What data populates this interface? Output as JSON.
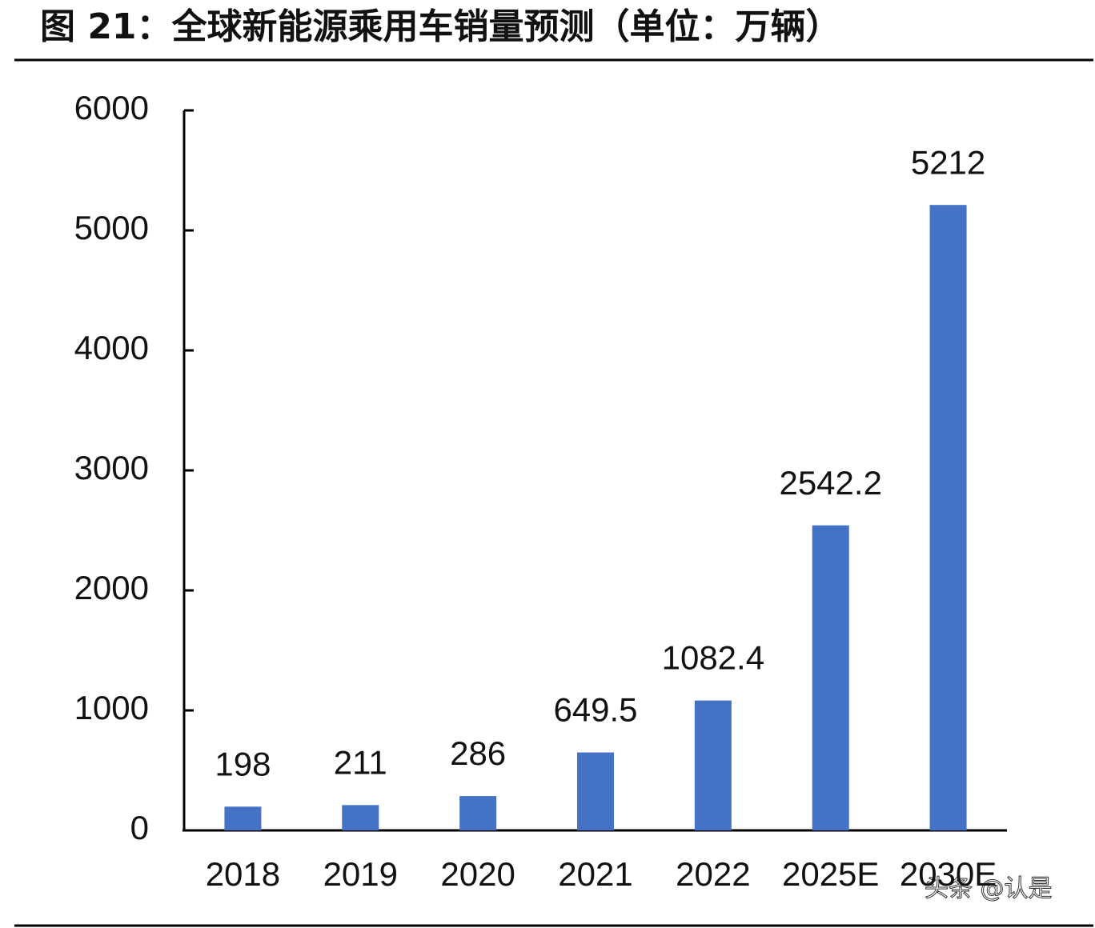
{
  "chart_data": {
    "type": "bar",
    "title": "图 21：全球新能源乘用车销量预测（单位：万辆）",
    "categories": [
      "2018",
      "2019",
      "2020",
      "2021",
      "2022",
      "2025E",
      "2030E"
    ],
    "values": [
      198,
      211,
      286,
      649.5,
      1082.4,
      2542.2,
      5212
    ],
    "color": "#4472c4",
    "ylim": [
      0,
      6000
    ],
    "yticks": [
      0,
      1000,
      2000,
      3000,
      4000,
      5000,
      6000
    ],
    "grid": false,
    "watermark": "头条 @认是"
  }
}
